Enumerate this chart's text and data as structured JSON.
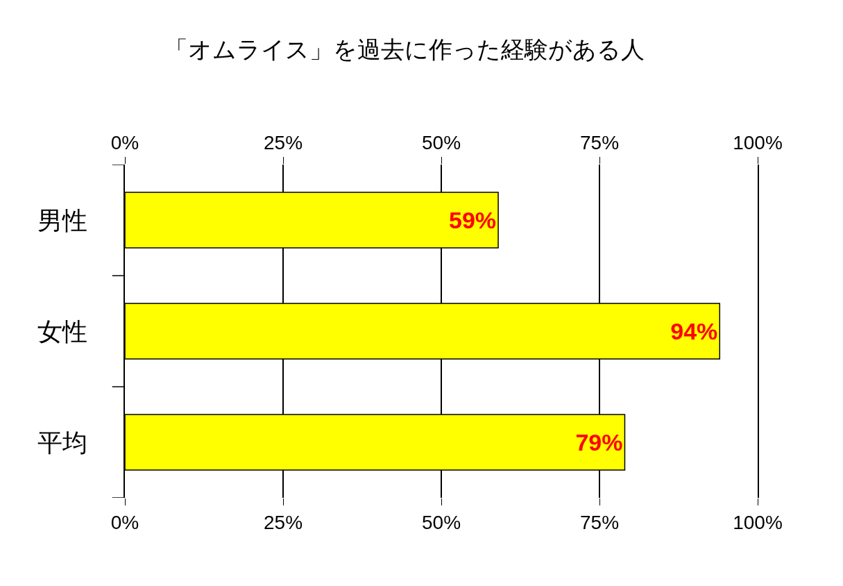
{
  "chart_data": {
    "type": "bar",
    "orientation": "horizontal",
    "title": "「オムライス」を過去に作った経験がある人",
    "categories": [
      "男性",
      "女性",
      "平均"
    ],
    "values": [
      59,
      94,
      79
    ],
    "color": "#ffff00",
    "value_labels": [
      "59%",
      "94%",
      "79%"
    ],
    "xlim": [
      0,
      100
    ],
    "xticks": [
      {
        "value": 0,
        "label": "0%"
      },
      {
        "value": 25,
        "label": "25%"
      },
      {
        "value": 50,
        "label": "50%"
      },
      {
        "value": 75,
        "label": "75%"
      },
      {
        "value": 100,
        "label": "100%"
      }
    ],
    "x2lim": [
      0,
      100
    ],
    "x2ticks": [
      {
        "value": 0,
        "label": "0%"
      },
      {
        "value": 25,
        "label": "25%"
      },
      {
        "value": 50,
        "label": "50%"
      },
      {
        "value": 75,
        "label": "75%"
      },
      {
        "value": 100,
        "label": "100%"
      }
    ],
    "grid": "x",
    "legend": false
  }
}
